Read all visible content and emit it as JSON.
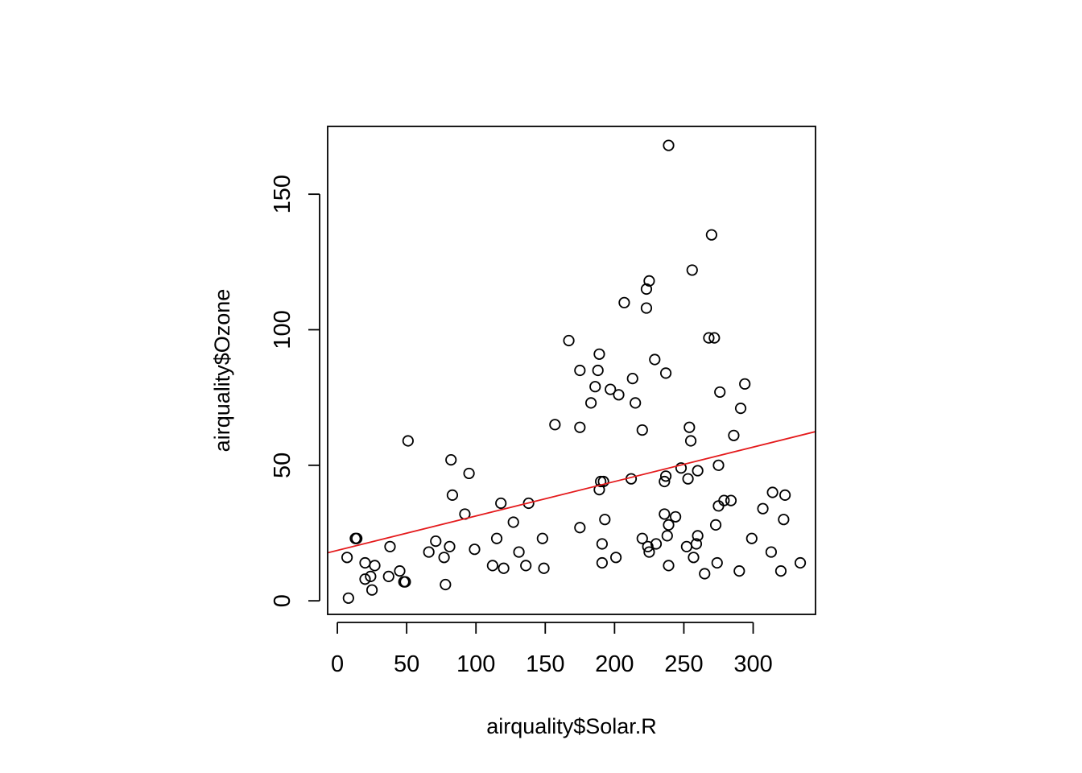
{
  "chart_data": {
    "type": "scatter",
    "title": "",
    "xlabel": "airquality$Solar.R",
    "ylabel": "airquality$Ozone",
    "xlim": [
      -7,
      345
    ],
    "ylim": [
      -5,
      175
    ],
    "xticks": [
      0,
      50,
      100,
      150,
      200,
      250,
      300
    ],
    "yticks": [
      0,
      50,
      100,
      150
    ],
    "grid": false,
    "legend": "none",
    "point_color": "#000000",
    "regression_line": {
      "intercept": 18.6,
      "slope": 0.127,
      "color": "#e41a1c"
    },
    "points": [
      [
        8,
        1
      ],
      [
        7,
        16
      ],
      [
        13,
        23
      ],
      [
        14,
        23
      ],
      [
        20,
        8
      ],
      [
        20,
        14
      ],
      [
        24,
        9
      ],
      [
        25,
        4
      ],
      [
        27,
        13
      ],
      [
        37,
        9
      ],
      [
        38,
        20
      ],
      [
        45,
        11
      ],
      [
        48,
        7
      ],
      [
        49,
        7
      ],
      [
        51,
        59
      ],
      [
        66,
        18
      ],
      [
        71,
        22
      ],
      [
        77,
        16
      ],
      [
        78,
        6
      ],
      [
        81,
        20
      ],
      [
        82,
        52
      ],
      [
        83,
        39
      ],
      [
        92,
        32
      ],
      [
        95,
        47
      ],
      [
        99,
        19
      ],
      [
        112,
        13
      ],
      [
        115,
        23
      ],
      [
        118,
        36
      ],
      [
        120,
        12
      ],
      [
        127,
        29
      ],
      [
        131,
        18
      ],
      [
        136,
        13
      ],
      [
        138,
        36
      ],
      [
        148,
        23
      ],
      [
        149,
        12
      ],
      [
        157,
        65
      ],
      [
        167,
        96
      ],
      [
        175,
        27
      ],
      [
        175,
        85
      ],
      [
        175,
        64
      ],
      [
        183,
        73
      ],
      [
        186,
        79
      ],
      [
        188,
        85
      ],
      [
        189,
        91
      ],
      [
        189,
        41
      ],
      [
        190,
        44
      ],
      [
        191,
        14
      ],
      [
        191,
        21
      ],
      [
        192,
        44
      ],
      [
        193,
        30
      ],
      [
        197,
        78
      ],
      [
        201,
        16
      ],
      [
        203,
        76
      ],
      [
        207,
        110
      ],
      [
        212,
        45
      ],
      [
        213,
        82
      ],
      [
        215,
        73
      ],
      [
        220,
        23
      ],
      [
        220,
        63
      ],
      [
        223,
        115
      ],
      [
        223,
        108
      ],
      [
        224,
        20
      ],
      [
        225,
        18
      ],
      [
        225,
        118
      ],
      [
        229,
        89
      ],
      [
        230,
        21
      ],
      [
        236,
        44
      ],
      [
        236,
        32
      ],
      [
        237,
        84
      ],
      [
        237,
        46
      ],
      [
        238,
        24
      ],
      [
        239,
        28
      ],
      [
        239,
        13
      ],
      [
        239,
        168
      ],
      [
        244,
        31
      ],
      [
        248,
        49
      ],
      [
        252,
        20
      ],
      [
        253,
        45
      ],
      [
        254,
        64
      ],
      [
        255,
        59
      ],
      [
        256,
        122
      ],
      [
        257,
        16
      ],
      [
        259,
        21
      ],
      [
        260,
        24
      ],
      [
        260,
        48
      ],
      [
        265,
        10
      ],
      [
        268,
        97
      ],
      [
        270,
        135
      ],
      [
        272,
        97
      ],
      [
        273,
        28
      ],
      [
        274,
        14
      ],
      [
        275,
        35
      ],
      [
        275,
        50
      ],
      [
        276,
        77
      ],
      [
        279,
        37
      ],
      [
        284,
        37
      ],
      [
        286,
        61
      ],
      [
        290,
        11
      ],
      [
        291,
        71
      ],
      [
        294,
        80
      ],
      [
        299,
        23
      ],
      [
        307,
        34
      ],
      [
        313,
        18
      ],
      [
        314,
        40
      ],
      [
        320,
        11
      ],
      [
        322,
        30
      ],
      [
        323,
        39
      ],
      [
        334,
        14
      ]
    ]
  }
}
